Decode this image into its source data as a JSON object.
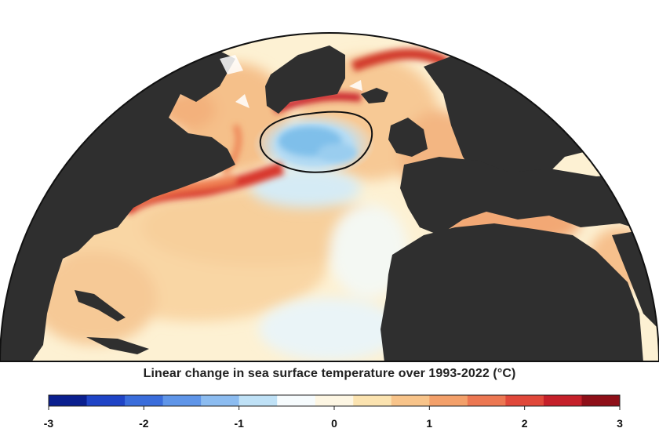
{
  "caption": "Linear change in sea surface temperature over 1993-2022 (°C)",
  "colorbar": {
    "ticks": [
      "-3",
      "-2",
      "-1",
      "0",
      "1",
      "2",
      "3"
    ],
    "range": [
      -3,
      3
    ],
    "colors": [
      "#0a1f8f",
      "#1f44c6",
      "#3a6ddb",
      "#5f95e8",
      "#8cbcf0",
      "#bfe1f6",
      "#f6fbfd",
      "#fdf6e3",
      "#fbe3b0",
      "#f8c48a",
      "#f3a06a",
      "#ec7752",
      "#e0483a",
      "#c5202a",
      "#8e0f18"
    ]
  },
  "map": {
    "land_color": "#2f2f2f",
    "ocean_base_color": "#fdf1d3",
    "feature": "contoured cold anomaly south of Greenland"
  }
}
